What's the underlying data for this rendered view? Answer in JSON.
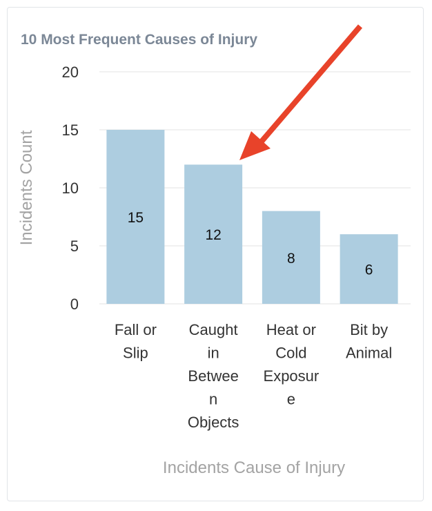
{
  "chart_data": {
    "type": "bar",
    "title": "10 Most Frequent Causes of Injury",
    "xlabel": "Incidents Cause of Injury",
    "ylabel": "Incidents Count",
    "categories": [
      [
        "Fall or",
        "Slip"
      ],
      [
        "Caught",
        "in",
        "Betwee",
        "n",
        "Objects"
      ],
      [
        "Heat or",
        "Cold",
        "Exposur",
        "e"
      ],
      [
        "Bit by",
        "Animal"
      ]
    ],
    "values": [
      15,
      12,
      8,
      6
    ],
    "ylim": [
      0,
      20
    ],
    "yticks": [
      0,
      5,
      10,
      15,
      20
    ],
    "grid": true,
    "bar_color": "#adcde0",
    "grid_color": "#e3e3e3",
    "annotation": {
      "type": "arrow",
      "color": "#e8432a",
      "points_to_category": "Caught in Between Objects"
    }
  }
}
